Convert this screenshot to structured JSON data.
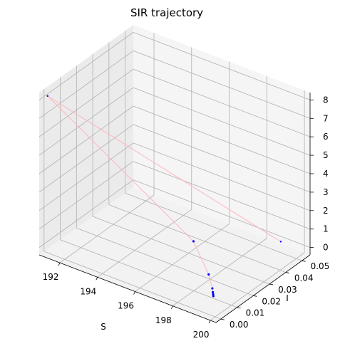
{
  "chart_data": {
    "type": "scatter",
    "projection": "3d",
    "title": "SIR trajectory",
    "xlabel": "S",
    "ylabel": "I",
    "zlabel": "",
    "xlim": [
      190.9,
      200.3
    ],
    "ylim": [
      -0.003,
      0.055
    ],
    "zlim": [
      -0.4,
      8.4
    ],
    "xticks": [
      192,
      194,
      196,
      198,
      200
    ],
    "yticks": [
      0.0,
      0.01,
      0.02,
      0.03,
      0.04,
      0.05
    ],
    "zticks": [
      0,
      1,
      2,
      3,
      4,
      5,
      6,
      7,
      8
    ],
    "ytick_labels": [
      "0.00",
      "0.01",
      "0.02",
      "0.03",
      "0.04",
      "0.05"
    ],
    "grid": true,
    "line_color": "#ffb6c1",
    "point_color": "#0000ff",
    "points": [
      {
        "S": 199.0,
        "I": 0.052,
        "R": 0.0
      },
      {
        "S": 191.0,
        "I": 0.001,
        "R": 8.0
      },
      {
        "S": 196.0,
        "I": 0.033,
        "R": 0.05
      },
      {
        "S": 198.1,
        "I": 0.018,
        "R": 0.02
      },
      {
        "S": 198.9,
        "I": 0.011,
        "R": 0.02
      },
      {
        "S": 199.1,
        "I": 0.009,
        "R": 0.02
      },
      {
        "S": 199.2,
        "I": 0.008,
        "R": 0.01
      },
      {
        "S": 199.3,
        "I": 0.007,
        "R": 0.01
      }
    ]
  }
}
